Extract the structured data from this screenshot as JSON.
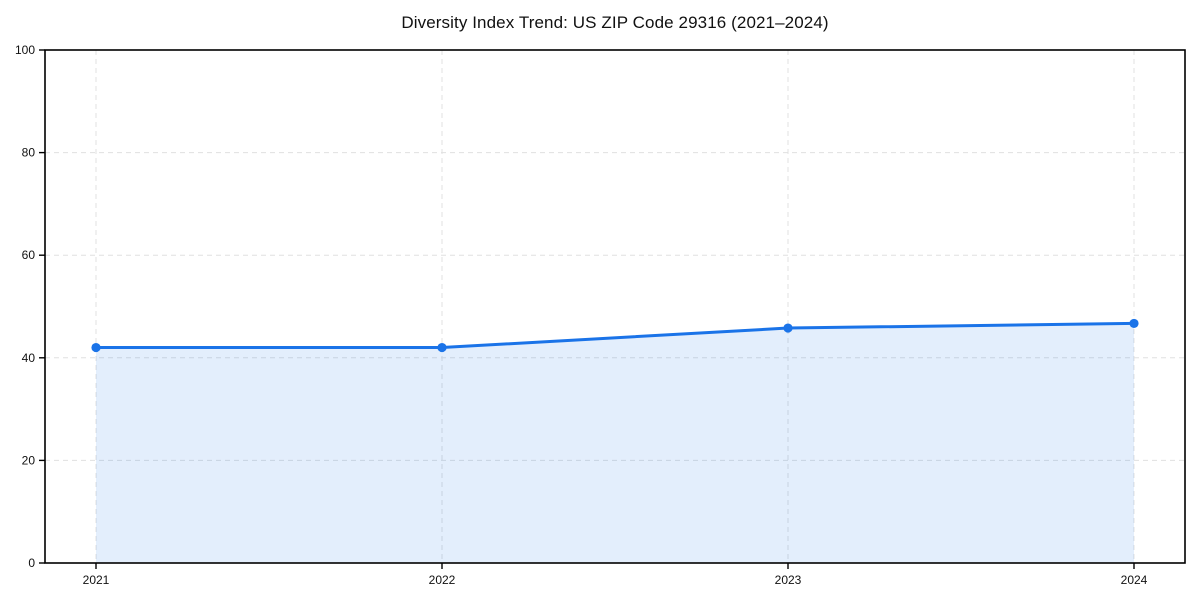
{
  "chart_data": {
    "type": "area",
    "title": "Diversity Index Trend: US ZIP Code 29316 (2021–2024)",
    "categories": [
      "2021",
      "2022",
      "2023",
      "2024"
    ],
    "series": [
      {
        "name": "Diversity Index",
        "values": [
          42,
          42,
          45.8,
          46.7
        ]
      }
    ],
    "xlabel": "",
    "ylabel": "",
    "ylim": [
      0,
      100
    ],
    "yticks": [
      0,
      20,
      40,
      60,
      80,
      100
    ],
    "grid": "dashed-both-axes",
    "legend_position": "none",
    "colors": {
      "line": "#1a73e8",
      "marker": "#1a73e8",
      "fill": "rgba(26,115,232,0.12)",
      "grid": "#e0e0e0",
      "axis": "#000000",
      "text": "#111111",
      "background": "#ffffff"
    }
  }
}
